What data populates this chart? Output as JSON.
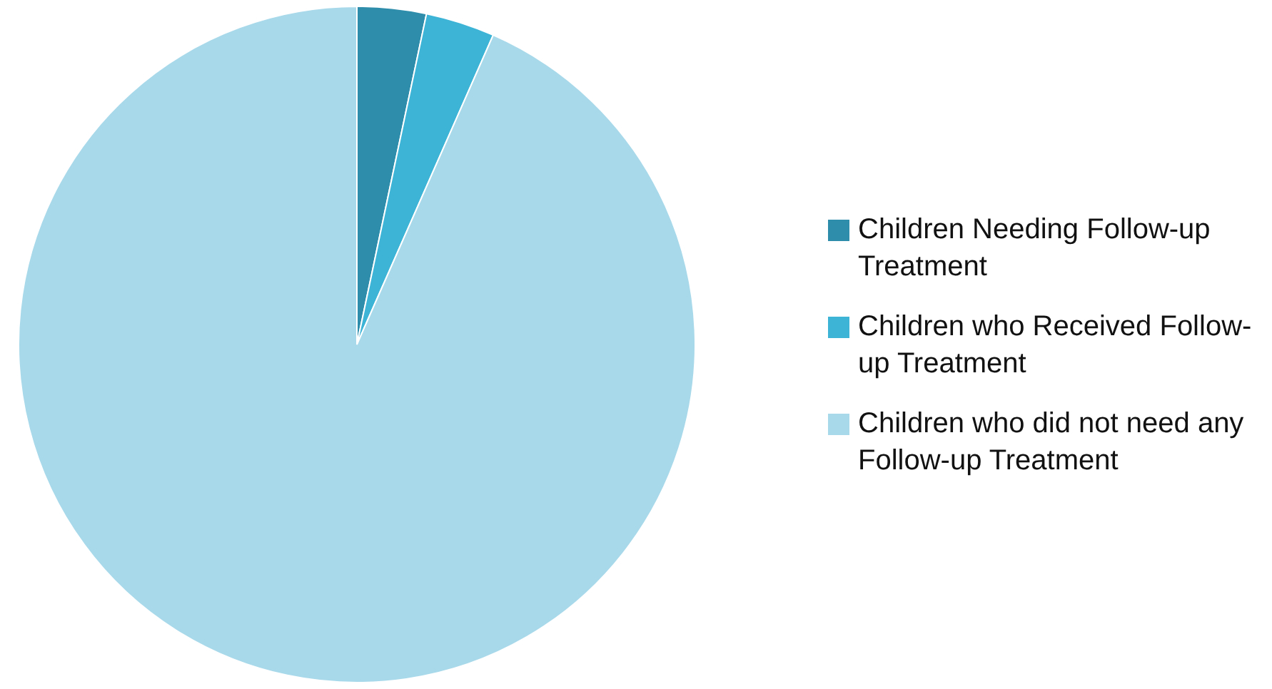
{
  "chart_data": {
    "type": "pie",
    "categories": [
      "Children Needing Follow-up Treatment",
      "Children who Received Follow-up Treatment",
      "Children who did not need any Follow-up Treatment"
    ],
    "values": [
      3.3,
      3.3,
      93.4
    ],
    "colors": [
      "#2e8dab",
      "#3db4d6",
      "#a8d9ea"
    ],
    "legend": "right"
  }
}
